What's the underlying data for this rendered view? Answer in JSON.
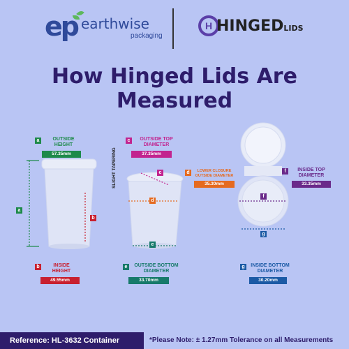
{
  "brand": {
    "ep_mark": "ep",
    "name": "earthwise",
    "sub": "packaging"
  },
  "hinged_logo": {
    "word": "HINGED",
    "suffix": "LIDS",
    "mark": "H"
  },
  "title": "How Hinged Lids Are Measured",
  "labels": {
    "a": {
      "letter": "a",
      "text": "OUTSIDE HEIGHT",
      "value": "57.35mm",
      "color": "#1e8a4a"
    },
    "b": {
      "letter": "b",
      "text": "INSIDE HEIGHT",
      "value": "49.55mm",
      "color": "#c8202f"
    },
    "c": {
      "letter": "c",
      "text": "OUTSIDE TOP DIAMETER",
      "value": "37.35mm",
      "color": "#c2248f"
    },
    "d": {
      "letter": "d",
      "text": "LOWER CLOSURE OUTSIDE DIAMETER",
      "value": "35.30mm",
      "color": "#e56a1f"
    },
    "e": {
      "letter": "e",
      "text": "OUTSIDE BOTTOM DIAMETER",
      "value": "33.70mm",
      "color": "#177a6a"
    },
    "f": {
      "letter": "f",
      "text": "INSIDE TOP DIAMETER",
      "value": "33.35mm",
      "color": "#6a2a8a"
    },
    "g": {
      "letter": "g",
      "text": "INSIDE BOTTOM DIAMETER",
      "value": "30.20mm",
      "color": "#1b5aa5"
    }
  },
  "tapering": "SLIGHT TAPERING",
  "footer": {
    "reference": "Reference: HL-3632 Container",
    "note": "*Please Note: ± 1.27mm Tolerance on all Measurements"
  }
}
